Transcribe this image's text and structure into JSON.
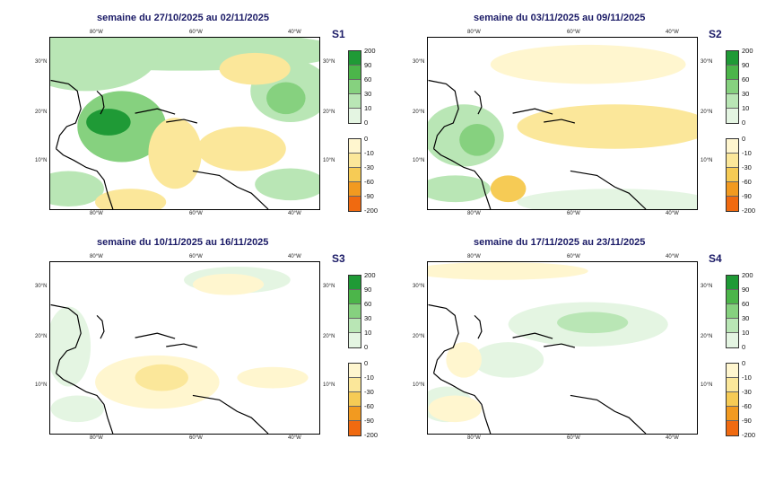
{
  "colors": {
    "ocean": "#ffffff",
    "land_outline": "#000000",
    "wet": [
      "#e4f5e2",
      "#b9e6b5",
      "#86d17f",
      "#4cb54a",
      "#1f9a36"
    ],
    "dry": [
      "#fff6cf",
      "#fbe79a",
      "#f6cb55",
      "#f29a20",
      "#f06a10"
    ]
  },
  "scale": {
    "wet_labels": [
      "200",
      "90",
      "60",
      "30",
      "10",
      "0"
    ],
    "dry_labels": [
      "0",
      "-10",
      "-30",
      "-60",
      "-90",
      "-200"
    ]
  },
  "axes": {
    "lon_labels": [
      "80°W",
      "60°W",
      "40°W"
    ],
    "lat_labels": [
      "30°N",
      "20°N",
      "10°N"
    ]
  },
  "panels": [
    {
      "id": "S1",
      "label": "S1",
      "title": "semaine du 27/10/2025 au 02/11/2025"
    },
    {
      "id": "S2",
      "label": "S2",
      "title": "semaine du 03/11/2025 au 09/11/2025"
    },
    {
      "id": "S3",
      "label": "S3",
      "title": "semaine du 10/11/2025 au 16/11/2025"
    },
    {
      "id": "S4",
      "label": "S4",
      "title": "semaine du 17/11/2025 au 23/11/2025"
    }
  ]
}
